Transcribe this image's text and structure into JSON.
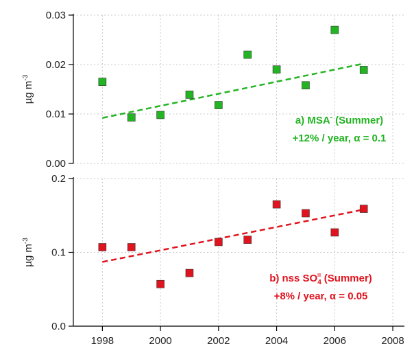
{
  "chart_data": [
    {
      "type": "scatter",
      "ylabel": [
        "µg m",
        "-3"
      ],
      "x": [
        1998,
        1999,
        2000,
        2001,
        2002,
        2003,
        2004,
        2005,
        2006,
        2007
      ],
      "values": [
        0.0165,
        0.0093,
        0.0098,
        0.0139,
        0.0118,
        0.022,
        0.019,
        0.0158,
        0.027,
        0.0189
      ],
      "color": "#22b422",
      "marker": "square",
      "trend": {
        "x": [
          1998,
          2007
        ],
        "values": [
          0.0092,
          0.0202
        ]
      },
      "annotation": [
        [
          "a) MSA",
          "-",
          " (Summer)"
        ],
        [
          "+12% / year, α = 0.1"
        ]
      ],
      "xlim": [
        1997,
        2008.4
      ],
      "xticks": [
        1998,
        2000,
        2002,
        2004,
        2006,
        2008
      ],
      "ylim": [
        0,
        0.03
      ],
      "yticks": [
        {
          "value": 0,
          "label": "0.00"
        },
        0.01,
        0.02,
        0.03
      ],
      "grid": true
    },
    {
      "type": "scatter",
      "ylabel": [
        "µg m",
        "-3"
      ],
      "x": [
        1998,
        1999,
        2000,
        2001,
        2002,
        2003,
        2004,
        2005,
        2006,
        2007
      ],
      "values": [
        0.107,
        0.107,
        0.057,
        0.072,
        0.114,
        0.117,
        0.165,
        0.153,
        0.127,
        0.159
      ],
      "color": "#e0141e",
      "marker": "square",
      "trend": {
        "x": [
          1998,
          2007
        ],
        "values": [
          0.087,
          0.158
        ]
      },
      "annotation": [
        [
          "b) nss SO",
          "4",
          "=",
          " (Summer)"
        ],
        [
          "+8% / year, α = 0.05"
        ]
      ],
      "xlim": [
        1997,
        2008.4
      ],
      "xticks": [
        1998,
        2000,
        2002,
        2004,
        2006,
        2008
      ],
      "ylim": [
        0,
        0.2
      ],
      "yticks": [
        {
          "value": 0,
          "label": "0.0"
        },
        0.1,
        0.2
      ],
      "grid": true
    }
  ]
}
